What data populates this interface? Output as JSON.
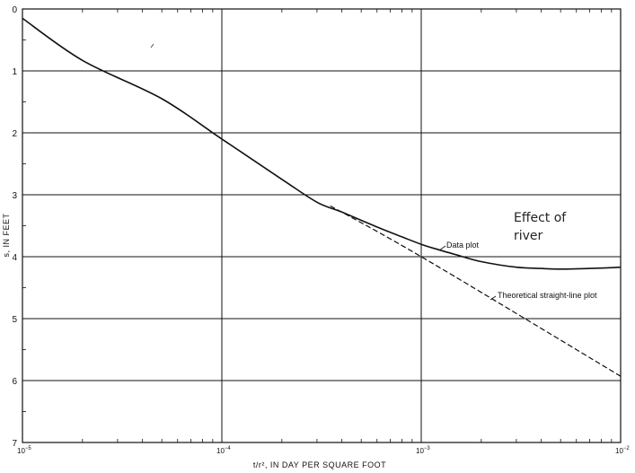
{
  "chart_data": {
    "type": "line",
    "xscale": "log",
    "yaxis_inverted": true,
    "grid": true,
    "xlabel": "t/r², IN DAY PER SQUARE FOOT",
    "ylabel": "s, IN FEET",
    "xlim": [
      1e-05,
      0.01
    ],
    "ylim": [
      0,
      7
    ],
    "x_ticks": [
      {
        "base": "10",
        "exp": "−5"
      },
      {
        "base": "10",
        "exp": "−4"
      },
      {
        "base": "10",
        "exp": "−3"
      },
      {
        "base": "10",
        "exp": "−2"
      }
    ],
    "y_ticks": [
      "0",
      "1",
      "2",
      "3",
      "4",
      "5",
      "6",
      "7"
    ],
    "series": [
      {
        "name": "Data plot",
        "style": "solid",
        "x": [
          1e-05,
          2e-05,
          5e-05,
          0.0001,
          0.0002,
          0.0003,
          0.0004,
          0.0006,
          0.0008,
          0.001,
          0.0012,
          0.0015,
          0.002,
          0.003,
          0.004,
          0.005,
          0.007,
          0.01
        ],
        "y": [
          0.15,
          0.83,
          1.45,
          2.1,
          2.75,
          3.12,
          3.28,
          3.52,
          3.68,
          3.8,
          3.88,
          3.97,
          4.08,
          4.17,
          4.19,
          4.2,
          4.19,
          4.17
        ]
      },
      {
        "name": "Theoretical straight-line plot",
        "style": "dashed",
        "x": [
          0.00035,
          0.001,
          0.01
        ],
        "y": [
          3.18,
          4.0,
          5.93
        ]
      }
    ],
    "annotations": [
      {
        "text": "Data plot",
        "target": "Data plot"
      },
      {
        "text": "Theoretical straight-line plot",
        "target": "Theoretical straight-line plot"
      },
      {
        "text": "Effect of river",
        "lines": [
          "Effect of",
          "river"
        ]
      }
    ]
  }
}
